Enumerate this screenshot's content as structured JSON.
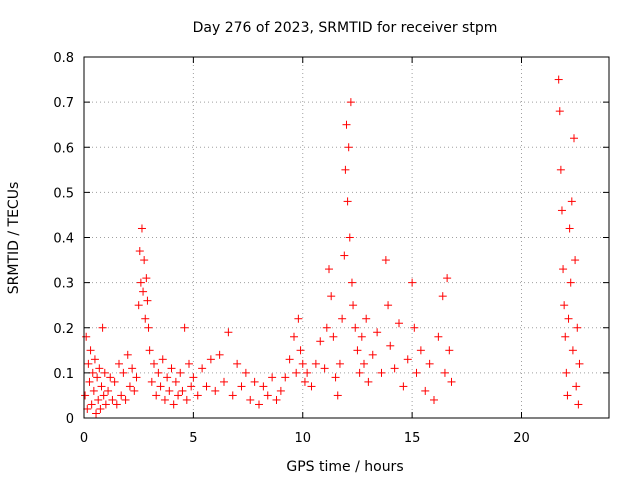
{
  "chart_data": {
    "type": "scatter",
    "title": "Day 276 of 2023, SRMTID for receiver stpm",
    "xlabel": "GPS time / hours",
    "ylabel": "SRMTID / TECUs",
    "xlim": [
      0,
      24
    ],
    "ylim": [
      0,
      0.8
    ],
    "x_ticks": [
      0,
      5,
      10,
      15,
      20
    ],
    "x_tick_labels": [
      "0",
      "5",
      "10",
      "15",
      "20"
    ],
    "y_ticks": [
      0,
      0.1,
      0.2,
      0.3,
      0.4,
      0.5,
      0.6,
      0.7,
      0.8
    ],
    "y_tick_labels": [
      "0",
      "0.1",
      "0.2",
      "0.3",
      "0.4",
      "0.5",
      "0.6",
      "0.7",
      "0.8"
    ],
    "grid": true,
    "marker": "+",
    "color": "#ff0000",
    "series": [
      {
        "name": "SRMTID",
        "points": [
          [
            0.05,
            0.05
          ],
          [
            0.1,
            0.18
          ],
          [
            0.15,
            0.02
          ],
          [
            0.2,
            0.12
          ],
          [
            0.25,
            0.08
          ],
          [
            0.3,
            0.15
          ],
          [
            0.35,
            0.03
          ],
          [
            0.4,
            0.1
          ],
          [
            0.45,
            0.06
          ],
          [
            0.5,
            0.13
          ],
          [
            0.55,
            0.01
          ],
          [
            0.6,
            0.09
          ],
          [
            0.65,
            0.04
          ],
          [
            0.7,
            0.11
          ],
          [
            0.75,
            0.02
          ],
          [
            0.8,
            0.07
          ],
          [
            0.85,
            0.2
          ],
          [
            0.9,
            0.05
          ],
          [
            0.95,
            0.1
          ],
          [
            1.0,
            0.03
          ],
          [
            1.1,
            0.06
          ],
          [
            1.2,
            0.09
          ],
          [
            1.3,
            0.04
          ],
          [
            1.4,
            0.08
          ],
          [
            1.5,
            0.03
          ],
          [
            1.6,
            0.12
          ],
          [
            1.7,
            0.05
          ],
          [
            1.8,
            0.1
          ],
          [
            1.9,
            0.04
          ],
          [
            2.0,
            0.14
          ],
          [
            2.1,
            0.07
          ],
          [
            2.2,
            0.11
          ],
          [
            2.3,
            0.06
          ],
          [
            2.4,
            0.09
          ],
          [
            2.5,
            0.25
          ],
          [
            2.55,
            0.37
          ],
          [
            2.6,
            0.3
          ],
          [
            2.65,
            0.42
          ],
          [
            2.7,
            0.28
          ],
          [
            2.75,
            0.35
          ],
          [
            2.8,
            0.22
          ],
          [
            2.85,
            0.31
          ],
          [
            2.9,
            0.26
          ],
          [
            2.95,
            0.2
          ],
          [
            3.0,
            0.15
          ],
          [
            3.1,
            0.08
          ],
          [
            3.2,
            0.12
          ],
          [
            3.3,
            0.05
          ],
          [
            3.4,
            0.1
          ],
          [
            3.5,
            0.07
          ],
          [
            3.6,
            0.13
          ],
          [
            3.7,
            0.04
          ],
          [
            3.8,
            0.09
          ],
          [
            3.9,
            0.06
          ],
          [
            4.0,
            0.11
          ],
          [
            4.1,
            0.03
          ],
          [
            4.2,
            0.08
          ],
          [
            4.3,
            0.05
          ],
          [
            4.4,
            0.1
          ],
          [
            4.5,
            0.06
          ],
          [
            4.6,
            0.2
          ],
          [
            4.7,
            0.04
          ],
          [
            4.8,
            0.12
          ],
          [
            4.9,
            0.07
          ],
          [
            5.0,
            0.09
          ],
          [
            5.2,
            0.05
          ],
          [
            5.4,
            0.11
          ],
          [
            5.6,
            0.07
          ],
          [
            5.8,
            0.13
          ],
          [
            6.0,
            0.06
          ],
          [
            6.2,
            0.14
          ],
          [
            6.4,
            0.08
          ],
          [
            6.6,
            0.19
          ],
          [
            6.8,
            0.05
          ],
          [
            7.0,
            0.12
          ],
          [
            7.2,
            0.07
          ],
          [
            7.4,
            0.1
          ],
          [
            7.6,
            0.04
          ],
          [
            7.8,
            0.08
          ],
          [
            8.0,
            0.03
          ],
          [
            8.2,
            0.07
          ],
          [
            8.4,
            0.05
          ],
          [
            8.6,
            0.09
          ],
          [
            8.8,
            0.04
          ],
          [
            9.0,
            0.06
          ],
          [
            9.2,
            0.09
          ],
          [
            9.4,
            0.13
          ],
          [
            9.6,
            0.18
          ],
          [
            9.7,
            0.1
          ],
          [
            9.8,
            0.22
          ],
          [
            9.9,
            0.15
          ],
          [
            10.0,
            0.12
          ],
          [
            10.1,
            0.08
          ],
          [
            10.2,
            0.1
          ],
          [
            10.4,
            0.07
          ],
          [
            10.6,
            0.12
          ],
          [
            10.8,
            0.17
          ],
          [
            11.0,
            0.11
          ],
          [
            11.1,
            0.2
          ],
          [
            11.2,
            0.33
          ],
          [
            11.3,
            0.27
          ],
          [
            11.4,
            0.18
          ],
          [
            11.5,
            0.09
          ],
          [
            11.6,
            0.05
          ],
          [
            11.7,
            0.12
          ],
          [
            11.8,
            0.22
          ],
          [
            11.9,
            0.36
          ],
          [
            11.95,
            0.55
          ],
          [
            12.0,
            0.65
          ],
          [
            12.05,
            0.48
          ],
          [
            12.1,
            0.6
          ],
          [
            12.15,
            0.4
          ],
          [
            12.2,
            0.7
          ],
          [
            12.25,
            0.3
          ],
          [
            12.3,
            0.25
          ],
          [
            12.4,
            0.2
          ],
          [
            12.5,
            0.15
          ],
          [
            12.6,
            0.1
          ],
          [
            12.7,
            0.18
          ],
          [
            12.8,
            0.12
          ],
          [
            12.9,
            0.22
          ],
          [
            13.0,
            0.08
          ],
          [
            13.2,
            0.14
          ],
          [
            13.4,
            0.19
          ],
          [
            13.6,
            0.1
          ],
          [
            13.8,
            0.35
          ],
          [
            13.9,
            0.25
          ],
          [
            14.0,
            0.16
          ],
          [
            14.2,
            0.11
          ],
          [
            14.4,
            0.21
          ],
          [
            14.6,
            0.07
          ],
          [
            14.8,
            0.13
          ],
          [
            15.0,
            0.3
          ],
          [
            15.1,
            0.2
          ],
          [
            15.2,
            0.1
          ],
          [
            15.4,
            0.15
          ],
          [
            15.6,
            0.06
          ],
          [
            15.8,
            0.12
          ],
          [
            16.0,
            0.04
          ],
          [
            16.2,
            0.18
          ],
          [
            16.4,
            0.27
          ],
          [
            16.5,
            0.1
          ],
          [
            16.6,
            0.31
          ],
          [
            16.7,
            0.15
          ],
          [
            16.8,
            0.08
          ],
          [
            21.7,
            0.75
          ],
          [
            21.75,
            0.68
          ],
          [
            21.8,
            0.55
          ],
          [
            21.85,
            0.46
          ],
          [
            21.9,
            0.33
          ],
          [
            21.95,
            0.25
          ],
          [
            22.0,
            0.18
          ],
          [
            22.05,
            0.1
          ],
          [
            22.1,
            0.05
          ],
          [
            22.15,
            0.22
          ],
          [
            22.2,
            0.42
          ],
          [
            22.25,
            0.3
          ],
          [
            22.3,
            0.48
          ],
          [
            22.35,
            0.15
          ],
          [
            22.4,
            0.62
          ],
          [
            22.45,
            0.35
          ],
          [
            22.5,
            0.07
          ],
          [
            22.55,
            0.2
          ],
          [
            22.6,
            0.03
          ],
          [
            22.65,
            0.12
          ]
        ]
      }
    ]
  }
}
